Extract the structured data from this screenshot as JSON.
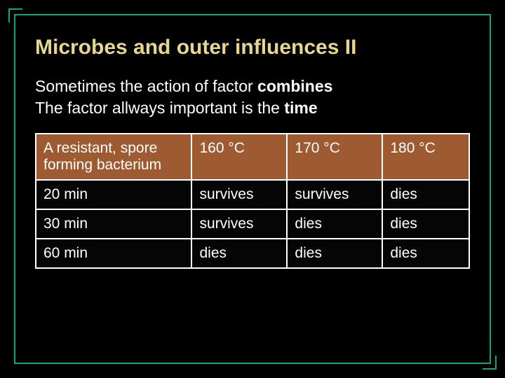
{
  "slide": {
    "title": "Microbes and outer influences II",
    "line1_prefix": "Sometimes the action of factor ",
    "line1_bold": "combines",
    "line2_prefix": "The factor allways important is the ",
    "line2_bold": "time"
  },
  "table": {
    "type": "table",
    "border_color": "#ffffff",
    "header_bg": "#9e5b32",
    "body_bg": "#050505",
    "text_color": "#ffffff",
    "fontsize": 21,
    "column_widths_pct": [
      36,
      22,
      22,
      20
    ],
    "columns": [
      "A resistant, spore forming bacterium",
      "160 °C",
      "170 °C",
      "180 °C"
    ],
    "rows": [
      [
        "20 min",
        "survives",
        "survives",
        "dies"
      ],
      [
        "30 min",
        "survives",
        "dies",
        "dies"
      ],
      [
        "60 min",
        "dies",
        "dies",
        "dies"
      ]
    ]
  },
  "style": {
    "slide_bg": "#000000",
    "frame_color": "#16a085",
    "title_color": "#e6d690",
    "body_color": "#ffffff",
    "title_fontsize": 30,
    "body_fontsize": 23
  }
}
